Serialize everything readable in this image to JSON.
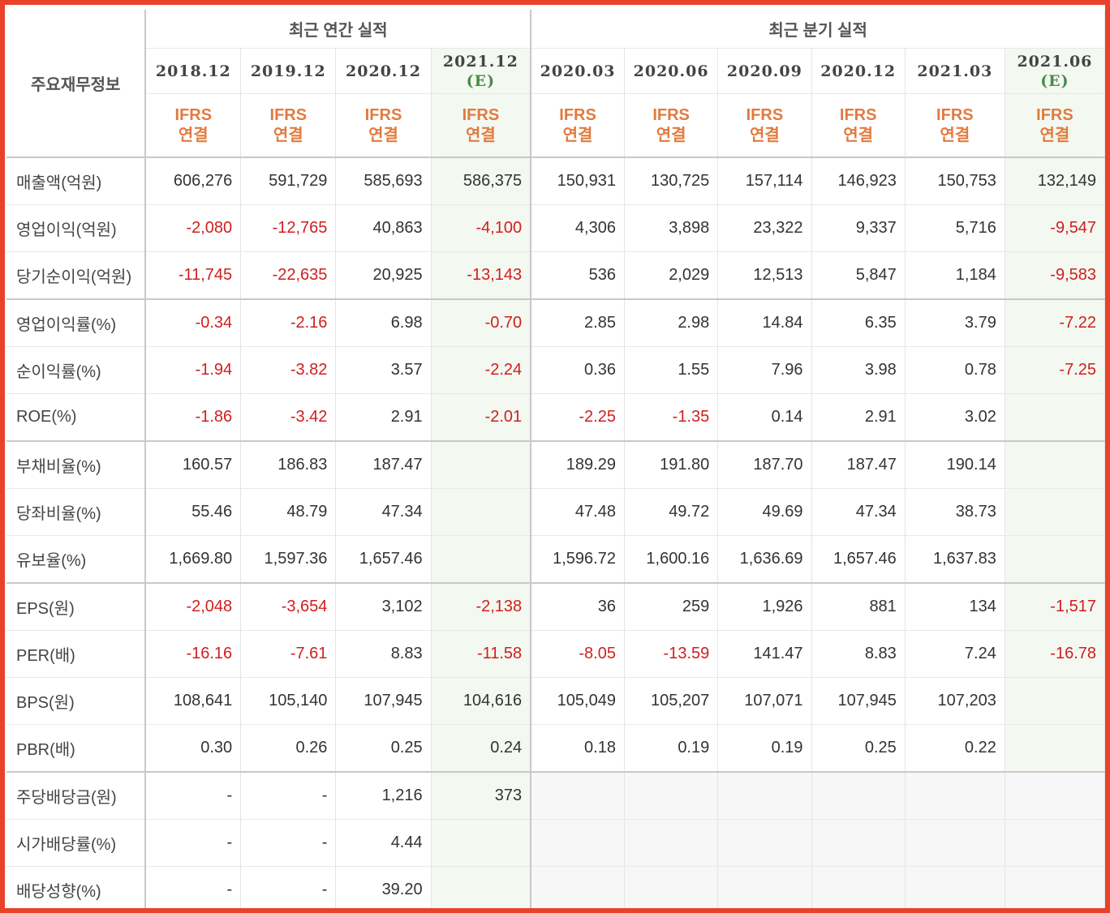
{
  "table": {
    "label_header": "주요재무정보",
    "groups": [
      {
        "label": "최근 연간 실적"
      },
      {
        "label": "최근 분기 실적"
      }
    ],
    "periods": [
      {
        "label": "2018.12",
        "est": ""
      },
      {
        "label": "2019.12",
        "est": ""
      },
      {
        "label": "2020.12",
        "est": ""
      },
      {
        "label": "2021.12",
        "est": "(E)"
      },
      {
        "label": "2020.03",
        "est": ""
      },
      {
        "label": "2020.06",
        "est": ""
      },
      {
        "label": "2020.09",
        "est": ""
      },
      {
        "label": "2020.12",
        "est": ""
      },
      {
        "label": "2021.03",
        "est": ""
      },
      {
        "label": "2021.06",
        "est": "(E)"
      }
    ],
    "ifrs": {
      "line1": "IFRS",
      "line2": "연결"
    },
    "rows": [
      {
        "label": "매출액(억원)",
        "values": [
          "606,276",
          "591,729",
          "585,693",
          "586,375",
          "150,931",
          "130,725",
          "157,114",
          "146,923",
          "150,753",
          "132,149"
        ]
      },
      {
        "label": "영업이익(억원)",
        "values": [
          "-2,080",
          "-12,765",
          "40,863",
          "-4,100",
          "4,306",
          "3,898",
          "23,322",
          "9,337",
          "5,716",
          "-9,547"
        ]
      },
      {
        "label": "당기순이익(억원)",
        "values": [
          "-11,745",
          "-22,635",
          "20,925",
          "-13,143",
          "536",
          "2,029",
          "12,513",
          "5,847",
          "1,184",
          "-9,583"
        ]
      },
      {
        "label": "영업이익률(%)",
        "values": [
          "-0.34",
          "-2.16",
          "6.98",
          "-0.70",
          "2.85",
          "2.98",
          "14.84",
          "6.35",
          "3.79",
          "-7.22"
        ]
      },
      {
        "label": "순이익률(%)",
        "values": [
          "-1.94",
          "-3.82",
          "3.57",
          "-2.24",
          "0.36",
          "1.55",
          "7.96",
          "3.98",
          "0.78",
          "-7.25"
        ]
      },
      {
        "label": "ROE(%)",
        "values": [
          "-1.86",
          "-3.42",
          "2.91",
          "-2.01",
          "-2.25",
          "-1.35",
          "0.14",
          "2.91",
          "3.02",
          ""
        ]
      },
      {
        "label": "부채비율(%)",
        "values": [
          "160.57",
          "186.83",
          "187.47",
          "",
          "189.29",
          "191.80",
          "187.70",
          "187.47",
          "190.14",
          ""
        ]
      },
      {
        "label": "당좌비율(%)",
        "values": [
          "55.46",
          "48.79",
          "47.34",
          "",
          "47.48",
          "49.72",
          "49.69",
          "47.34",
          "38.73",
          ""
        ]
      },
      {
        "label": "유보율(%)",
        "values": [
          "1,669.80",
          "1,597.36",
          "1,657.46",
          "",
          "1,596.72",
          "1,600.16",
          "1,636.69",
          "1,657.46",
          "1,637.83",
          ""
        ]
      },
      {
        "label": "EPS(원)",
        "values": [
          "-2,048",
          "-3,654",
          "3,102",
          "-2,138",
          "36",
          "259",
          "1,926",
          "881",
          "134",
          "-1,517"
        ]
      },
      {
        "label": "PER(배)",
        "values": [
          "-16.16",
          "-7.61",
          "8.83",
          "-11.58",
          "-8.05",
          "-13.59",
          "141.47",
          "8.83",
          "7.24",
          "-16.78"
        ]
      },
      {
        "label": "BPS(원)",
        "values": [
          "108,641",
          "105,140",
          "107,945",
          "104,616",
          "105,049",
          "105,207",
          "107,071",
          "107,945",
          "107,203",
          ""
        ]
      },
      {
        "label": "PBR(배)",
        "values": [
          "0.30",
          "0.26",
          "0.25",
          "0.24",
          "0.18",
          "0.19",
          "0.19",
          "0.25",
          "0.22",
          ""
        ]
      },
      {
        "label": "주당배당금(원)",
        "values": [
          "-",
          "-",
          "1,216",
          "373",
          "",
          "",
          "",
          "",
          "",
          ""
        ]
      },
      {
        "label": "시가배당률(%)",
        "values": [
          "-",
          "-",
          "4.44",
          "",
          "",
          "",
          "",
          "",
          "",
          ""
        ]
      },
      {
        "label": "배당성향(%)",
        "values": [
          "-",
          "-",
          "39.20",
          "",
          "",
          "",
          "",
          "",
          "",
          ""
        ]
      }
    ],
    "colors": {
      "negative": "#d11e1e",
      "ifrs": "#e27a3f",
      "estimate_bg": "#f3f8f1",
      "estimate_text": "#4a8a4a",
      "frame": "#e8432a"
    }
  }
}
